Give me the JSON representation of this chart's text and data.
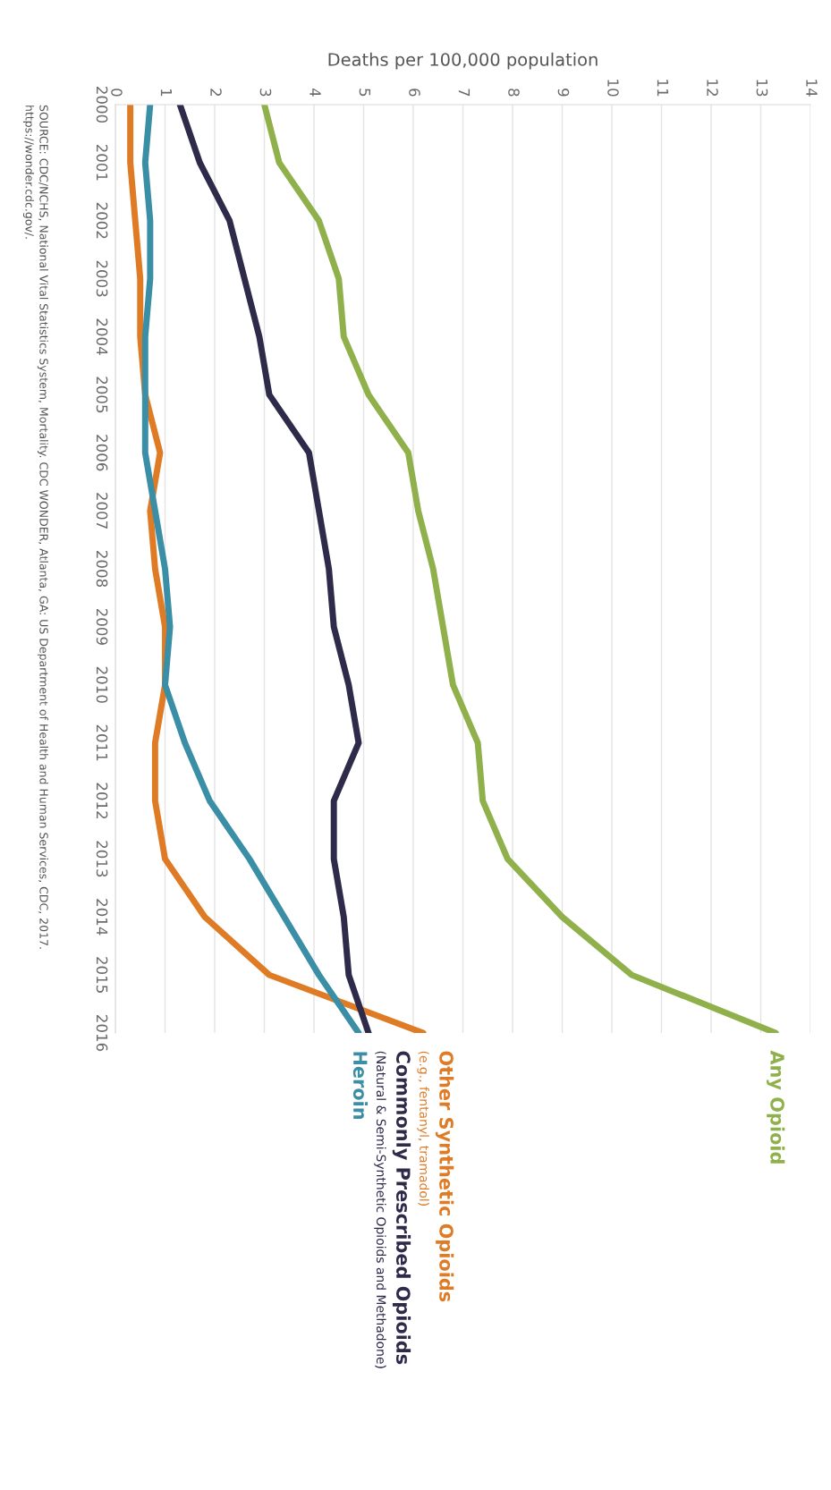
{
  "chart_data": {
    "type": "line",
    "orientation": "horizontal",
    "xlabel": "Deaths per 100,000 population",
    "categories": [
      "2000",
      "2001",
      "2002",
      "2003",
      "2004",
      "2005",
      "2006",
      "2007",
      "2008",
      "2009",
      "2010",
      "2011",
      "2012",
      "2013",
      "2014",
      "2015",
      "2016"
    ],
    "xlim": [
      0,
      14
    ],
    "xticks": [
      0,
      1,
      2,
      3,
      4,
      5,
      6,
      7,
      8,
      9,
      10,
      11,
      12,
      13,
      14
    ],
    "grid": "x",
    "legend": false,
    "line_style": "solid",
    "marker": "none",
    "series": [
      {
        "name": "Any Opioid",
        "color": "#8fb04a",
        "values": [
          3.0,
          3.3,
          4.1,
          4.5,
          4.6,
          5.1,
          5.9,
          6.1,
          6.4,
          6.6,
          6.8,
          7.3,
          7.4,
          7.9,
          9.0,
          10.4,
          13.3
        ]
      },
      {
        "name": "Other Synthetic Opioids",
        "color": "#e07b25",
        "values": [
          0.3,
          0.3,
          0.4,
          0.5,
          0.5,
          0.6,
          0.9,
          0.7,
          0.8,
          1.0,
          1.0,
          0.8,
          0.8,
          1.0,
          1.8,
          3.1,
          6.2
        ]
      },
      {
        "name": "Commonly Prescribed Opioids",
        "color": "#2d2a4a",
        "values": [
          1.3,
          1.7,
          2.3,
          2.6,
          2.9,
          3.1,
          3.9,
          4.1,
          4.3,
          4.4,
          4.7,
          4.9,
          4.4,
          4.4,
          4.6,
          4.7,
          5.1
        ]
      },
      {
        "name": "Heroin",
        "color": "#3a8ea5",
        "values": [
          0.7,
          0.6,
          0.7,
          0.7,
          0.6,
          0.6,
          0.6,
          0.8,
          1.0,
          1.1,
          1.0,
          1.4,
          1.9,
          2.7,
          3.4,
          4.1,
          4.9
        ]
      }
    ],
    "annotations": [
      "(e.g., fentanyl, tramadol)",
      "(Natural & Semi-Synthetic Opioids and Methadone)",
      "SOURCE: CDC/NCHS, National Vital Statistics System, Mortality. CDC WONDER, Atlanta, GA: US Department of Health and Human Services, CDC, 2017.\nhttps://wonder.cdc.gov/."
    ]
  }
}
